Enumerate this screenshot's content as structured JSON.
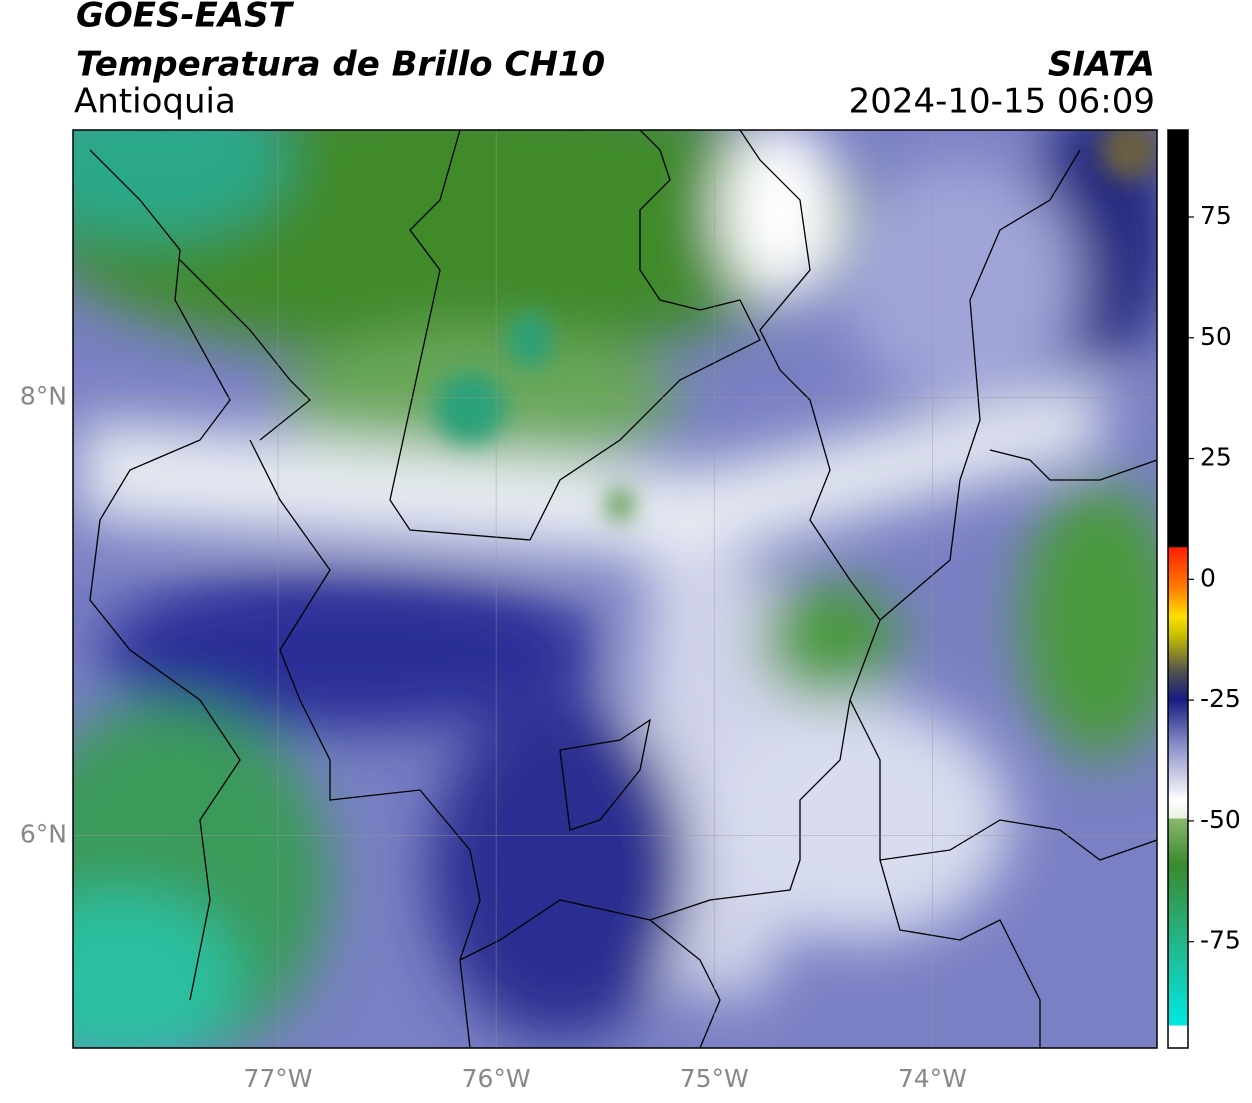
{
  "header": {
    "satellite": "GOES-EAST",
    "product": "Temperatura de Brillo CH10",
    "region": "Antioquia",
    "source": "SIATA",
    "datetime": "2024-10-15 06:09"
  },
  "map": {
    "xlim": [
      -77.94,
      -72.97
    ],
    "ylim": [
      5.03,
      9.22
    ],
    "xticks": [
      {
        "value": -77,
        "label": "77°W"
      },
      {
        "value": -76,
        "label": "76°W"
      },
      {
        "value": -75,
        "label": "75°W"
      },
      {
        "value": -74,
        "label": "74°W"
      }
    ],
    "yticks": [
      {
        "value": 6,
        "label": "6°N"
      },
      {
        "value": 8,
        "label": "8°N"
      }
    ],
    "grid": true
  },
  "colorbar": {
    "lim": [
      -97,
      93
    ],
    "ticks": [
      -75,
      -50,
      -25,
      0,
      25,
      50,
      75
    ]
  }
}
